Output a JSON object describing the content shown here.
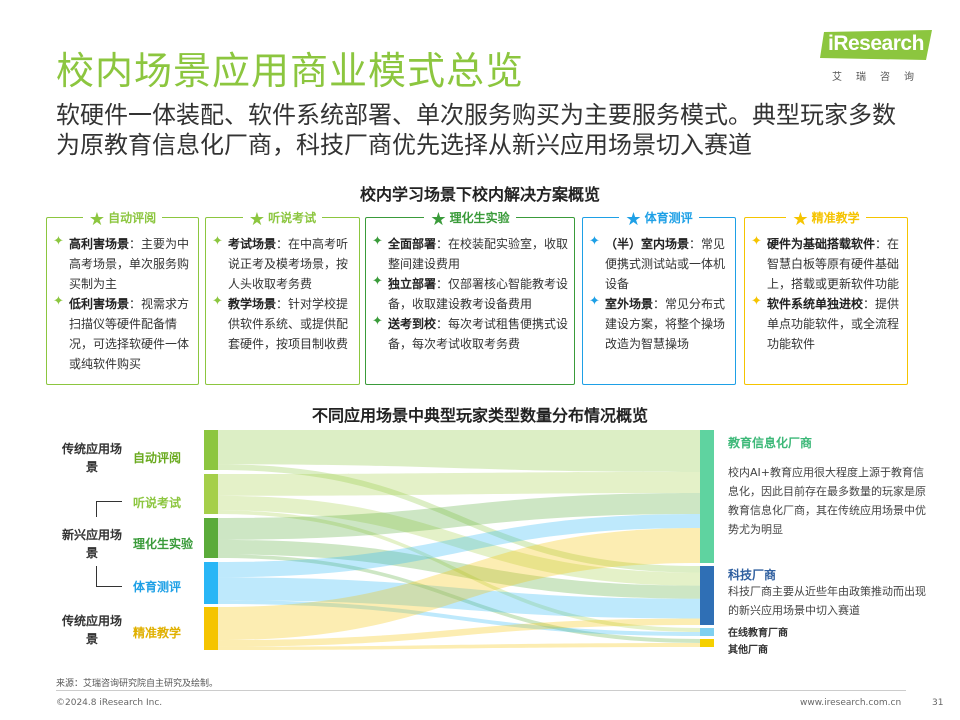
{
  "title": "校内场景应用商业模式总览",
  "logo": {
    "brand": "iResearch",
    "sub": "艾瑞咨询"
  },
  "subtitle": "软硬件一体装配、软件系统部署、单次服务购买为主要服务模式。典型玩家多数为原教育信息化厂商，科技厂商优先选择从新兴应用场景切入赛道",
  "section1_title": "校内学习场景下校内解决方案概览",
  "cards": [
    {
      "title": "自动评阅",
      "color": "#8cc63f",
      "items": [
        {
          "head": "高利害场景",
          "text": "：主要为中高考场景，单次服务购买制为主"
        },
        {
          "head": "低利害场景",
          "text": "：视需求方扫描仪等硬件配备情况，可选择软硬件一体或纯软件购买"
        }
      ]
    },
    {
      "title": "听说考试",
      "color": "#8cc63f",
      "items": [
        {
          "head": "考试场景",
          "text": "：在中高考听说正考及模考场景，按人头收取考务费"
        },
        {
          "head": "教学场景",
          "text": "：针对学校提供软件系统、或提供配套硬件，按项目制收费"
        }
      ]
    },
    {
      "title": "理化生实验",
      "color": "#3a9b3a",
      "items": [
        {
          "head": "全面部署",
          "text": "：在校装配实验室，收取整间建设费用"
        },
        {
          "head": "独立部署",
          "text": "：仅部署核心智能教考设备，收取建设教考设备费用"
        },
        {
          "head": "送考到校",
          "text": "：每次考试租售便携式设备，每次考试收取考务费"
        }
      ]
    },
    {
      "title": "体育测评",
      "color": "#1ea0e6",
      "items": [
        {
          "head": "（半）室内场景",
          "text": "：常见便携式测试站或一体机设备"
        },
        {
          "head": "室外场景",
          "text": "：常见分布式建设方案，将整个操场改造为智慧操场"
        }
      ]
    },
    {
      "title": "精准教学",
      "color": "#f5c400",
      "items": [
        {
          "head": "硬件为基础搭载软件",
          "text": "：在智慧白板等原有硬件基础上，搭载或更新软件功能"
        },
        {
          "head": "软件系统单独进校",
          "text": "：提供单点功能软件，或全流程功能软件"
        }
      ]
    }
  ],
  "section2_title": "不同应用场景中典型玩家类型数量分布情况概览",
  "left_groups": {
    "traditional_1": "传统应用场景",
    "emerging": "新兴应用场景",
    "traditional_2": "传统应用场景"
  },
  "scenes": [
    {
      "name": "自动评阅",
      "color": "#8cc63f",
      "text_color": "#6aaa1f"
    },
    {
      "name": "听说考试",
      "color": "#a5cf4a",
      "text_color": "#8cc63f"
    },
    {
      "name": "理化生实验",
      "color": "#5aab3a",
      "text_color": "#3a9b3a"
    },
    {
      "name": "体育测评",
      "color": "#29b6f6",
      "text_color": "#1ea0e6"
    },
    {
      "name": "精准教学",
      "color": "#f5c400",
      "text_color": "#e0b000"
    }
  ],
  "players": [
    {
      "name": "教育信息化厂商",
      "color": "#5fd3a0",
      "text_color": "#3cb878",
      "desc": "校内AI+教育应用很大程度上源于教育信息化，因此目前存在最多数量的玩家是原教育信息化厂商，其在传统应用场景中优势尤为明显"
    },
    {
      "name": "科技厂商",
      "color": "#2f6fb5",
      "text_color": "#2f5f9f",
      "desc": "科技厂商主要从近些年由政策推动而出现的新兴应用场景中切入赛道"
    },
    {
      "name": "在线教育厂商",
      "color": "#7fd0f0",
      "text_color": "#333",
      "desc": ""
    },
    {
      "name": "其他厂商",
      "color": "#f5d000",
      "text_color": "#333",
      "desc": ""
    }
  ],
  "flows": [
    {
      "from": 0,
      "to": 0,
      "value": 6
    },
    {
      "from": 0,
      "to": 1,
      "value": 1
    },
    {
      "from": 1,
      "to": 0,
      "value": 3
    },
    {
      "from": 1,
      "to": 1,
      "value": 2
    },
    {
      "from": 1,
      "to": 2,
      "value": 0.5
    },
    {
      "from": 2,
      "to": 0,
      "value": 3
    },
    {
      "from": 2,
      "to": 1,
      "value": 2
    },
    {
      "from": 2,
      "to": 3,
      "value": 0.5
    },
    {
      "from": 3,
      "to": 0,
      "value": 2
    },
    {
      "from": 3,
      "to": 1,
      "value": 3
    },
    {
      "from": 3,
      "to": 2,
      "value": 0.5
    },
    {
      "from": 4,
      "to": 0,
      "value": 5
    },
    {
      "from": 4,
      "to": 1,
      "value": 1
    },
    {
      "from": 4,
      "to": 3,
      "value": 0.5
    }
  ],
  "source": "来源：艾瑞咨询研究院自主研究及绘制。",
  "copyright": "©2024.8 iResearch Inc.",
  "website": "www.iresearch.com.cn",
  "page_number": "31"
}
